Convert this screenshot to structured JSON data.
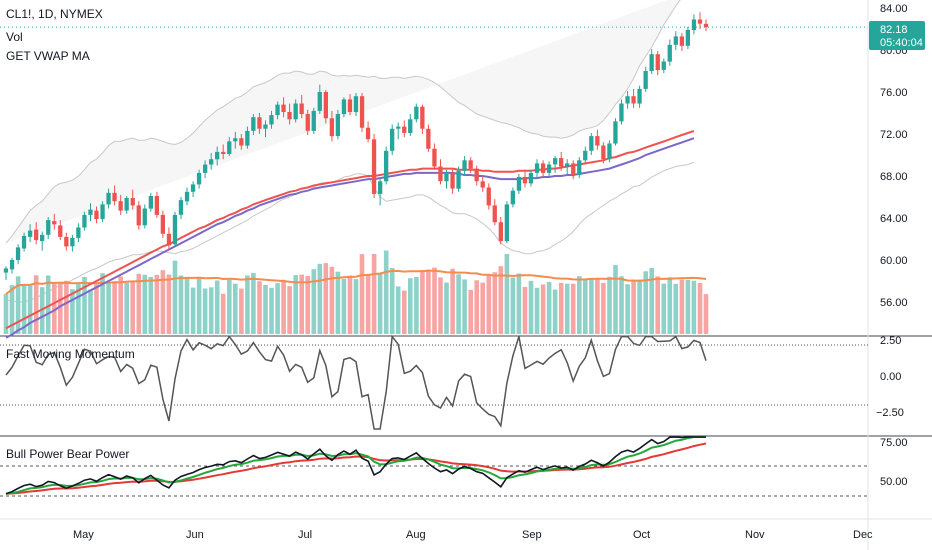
{
  "symbol_line": "CL1!, 1D, NYMEX",
  "vol_label": "Vol",
  "vwap_label": "GET VWAP MA",
  "price_axis": [
    "84.00",
    "80.00",
    "76.00",
    "72.00",
    "68.00",
    "64.00",
    "60.00",
    "56.00"
  ],
  "current_price": "82.18",
  "countdown": "05:40:04",
  "momentum": {
    "title": "Fast Moving Momentum",
    "axis": [
      "2.50",
      "0.00",
      "−2.50"
    ]
  },
  "bullbear": {
    "title": "Bull Power Bear Power",
    "axis": [
      "75.00",
      "50.00"
    ]
  },
  "time_axis": [
    "May",
    "Jun",
    "Jul",
    "Aug",
    "Sep",
    "Oct",
    "Nov",
    "Dec"
  ],
  "colors": {
    "up": "#26a69a",
    "down": "#ef5350",
    "vol_up": "#8ed1c8",
    "vol_down": "#f6a5a3",
    "ma_red": "#ef5350",
    "ma_blue": "#7b68c8",
    "vol_ma": "#f58c4d",
    "band": "#c8c8c8",
    "price_badge": "#26a69a",
    "line_black": "#131722",
    "green": "#22a83b",
    "red": "#e53935"
  },
  "chart_data": {
    "type": "candlestick",
    "x_range": [
      "2022-04-15",
      "2022-10-20"
    ],
    "ylim": [
      52.5,
      85
    ],
    "ohlc": [
      [
        58.8,
        59.4,
        58.1,
        59.2
      ],
      [
        59.1,
        60.2,
        58.7,
        60.0
      ],
      [
        60.0,
        61.5,
        59.6,
        61.2
      ],
      [
        61.1,
        62.6,
        60.8,
        62.3
      ],
      [
        62.2,
        63.4,
        61.7,
        62.8
      ],
      [
        62.9,
        63.6,
        61.5,
        61.9
      ],
      [
        61.8,
        62.7,
        60.9,
        62.4
      ],
      [
        62.4,
        64.1,
        62.0,
        63.8
      ],
      [
        63.7,
        64.4,
        62.9,
        63.4
      ],
      [
        63.3,
        63.8,
        61.9,
        62.2
      ],
      [
        62.2,
        62.6,
        60.9,
        61.3
      ],
      [
        61.3,
        62.4,
        60.8,
        62.1
      ],
      [
        62.1,
        63.5,
        61.7,
        63.1
      ],
      [
        63.1,
        64.6,
        62.8,
        64.3
      ],
      [
        64.3,
        65.4,
        63.7,
        64.8
      ],
      [
        64.7,
        65.1,
        63.5,
        63.9
      ],
      [
        63.9,
        65.6,
        63.6,
        65.3
      ],
      [
        65.3,
        66.8,
        64.9,
        66.4
      ],
      [
        66.4,
        67.1,
        65.2,
        65.6
      ],
      [
        65.6,
        66.2,
        64.3,
        64.7
      ],
      [
        64.7,
        66.1,
        64.4,
        65.9
      ],
      [
        65.9,
        66.7,
        64.8,
        65.2
      ],
      [
        65.2,
        65.6,
        62.9,
        63.3
      ],
      [
        63.3,
        65.3,
        63.0,
        64.9
      ],
      [
        64.9,
        66.4,
        64.6,
        66.1
      ],
      [
        66.1,
        66.5,
        64.0,
        64.3
      ],
      [
        64.3,
        64.7,
        62.1,
        62.5
      ],
      [
        62.5,
        63.1,
        61.0,
        61.4
      ],
      [
        61.5,
        64.6,
        61.2,
        64.3
      ],
      [
        64.3,
        66.0,
        63.9,
        65.7
      ],
      [
        65.6,
        66.9,
        65.2,
        66.5
      ],
      [
        66.5,
        67.5,
        66.0,
        67.2
      ],
      [
        67.2,
        68.6,
        66.8,
        68.3
      ],
      [
        68.3,
        69.5,
        67.8,
        69.1
      ],
      [
        69.1,
        70.2,
        68.6,
        69.6
      ],
      [
        69.6,
        70.8,
        69.0,
        70.3
      ],
      [
        70.3,
        71.0,
        69.6,
        70.1
      ],
      [
        70.1,
        71.7,
        69.9,
        71.3
      ],
      [
        71.3,
        72.2,
        70.6,
        71.6
      ],
      [
        71.6,
        72.0,
        70.5,
        70.9
      ],
      [
        70.9,
        72.7,
        70.6,
        72.3
      ],
      [
        72.3,
        73.9,
        71.9,
        73.6
      ],
      [
        73.6,
        74.0,
        72.0,
        72.5
      ],
      [
        72.5,
        73.3,
        71.7,
        72.9
      ],
      [
        72.9,
        74.2,
        72.5,
        73.8
      ],
      [
        73.8,
        75.1,
        73.4,
        74.8
      ],
      [
        74.8,
        75.5,
        73.6,
        74.1
      ],
      [
        74.1,
        74.9,
        72.9,
        73.4
      ],
      [
        73.4,
        75.3,
        73.1,
        74.9
      ],
      [
        74.9,
        75.7,
        73.5,
        73.9
      ],
      [
        73.9,
        74.3,
        71.9,
        72.3
      ],
      [
        72.3,
        74.5,
        72.0,
        74.2
      ],
      [
        74.2,
        76.7,
        73.9,
        76.0
      ],
      [
        76.0,
        76.2,
        73.0,
        73.5
      ],
      [
        73.5,
        74.2,
        71.3,
        71.8
      ],
      [
        71.8,
        74.3,
        71.5,
        73.9
      ],
      [
        73.9,
        75.5,
        73.6,
        75.3
      ],
      [
        75.3,
        75.8,
        73.8,
        74.1
      ],
      [
        74.1,
        75.9,
        73.7,
        75.6
      ],
      [
        75.6,
        75.9,
        72.2,
        72.6
      ],
      [
        72.6,
        73.2,
        71.2,
        71.5
      ],
      [
        71.5,
        72.0,
        65.9,
        66.3
      ],
      [
        66.3,
        67.9,
        65.2,
        67.5
      ],
      [
        67.5,
        70.8,
        67.2,
        70.4
      ],
      [
        70.4,
        72.9,
        70.0,
        72.5
      ],
      [
        72.5,
        73.1,
        71.5,
        72.7
      ],
      [
        72.7,
        73.3,
        71.7,
        72.1
      ],
      [
        72.1,
        73.9,
        71.8,
        73.4
      ],
      [
        73.4,
        74.9,
        73.1,
        74.6
      ],
      [
        74.6,
        74.8,
        72.0,
        72.5
      ],
      [
        72.5,
        72.9,
        70.3,
        70.6
      ],
      [
        70.6,
        71.1,
        68.6,
        68.9
      ],
      [
        68.9,
        69.6,
        67.2,
        67.5
      ],
      [
        67.5,
        68.6,
        66.8,
        68.2
      ],
      [
        68.2,
        68.8,
        66.3,
        66.8
      ],
      [
        66.8,
        68.9,
        66.5,
        68.5
      ],
      [
        68.5,
        69.9,
        68.1,
        69.5
      ],
      [
        69.5,
        69.8,
        68.3,
        68.7
      ],
      [
        68.7,
        69.0,
        67.1,
        67.5
      ],
      [
        67.5,
        68.1,
        66.5,
        66.9
      ],
      [
        66.9,
        67.3,
        64.8,
        65.2
      ],
      [
        65.2,
        65.8,
        63.3,
        63.6
      ],
      [
        63.6,
        64.1,
        61.5,
        61.8
      ],
      [
        61.8,
        65.6,
        61.6,
        65.3
      ],
      [
        65.3,
        66.9,
        65.0,
        66.6
      ],
      [
        66.6,
        68.2,
        66.3,
        67.9
      ],
      [
        67.9,
        68.6,
        66.9,
        67.3
      ],
      [
        67.3,
        68.6,
        67.0,
        68.3
      ],
      [
        68.3,
        69.6,
        67.9,
        69.2
      ],
      [
        69.2,
        69.5,
        67.9,
        68.3
      ],
      [
        68.3,
        69.4,
        67.9,
        69.1
      ],
      [
        69.1,
        69.9,
        68.3,
        69.7
      ],
      [
        69.7,
        70.3,
        68.5,
        68.9
      ],
      [
        68.9,
        69.6,
        68.0,
        69.2
      ],
      [
        69.2,
        69.5,
        67.7,
        68.1
      ],
      [
        68.1,
        69.8,
        67.8,
        69.5
      ],
      [
        69.5,
        70.8,
        69.2,
        70.4
      ],
      [
        70.4,
        72.1,
        70.0,
        71.8
      ],
      [
        71.8,
        72.4,
        70.5,
        70.9
      ],
      [
        70.9,
        71.2,
        69.2,
        69.6
      ],
      [
        69.6,
        71.4,
        69.3,
        71.1
      ],
      [
        71.1,
        73.5,
        70.9,
        73.2
      ],
      [
        73.2,
        75.3,
        72.9,
        74.9
      ],
      [
        74.9,
        76.1,
        74.4,
        75.6
      ],
      [
        75.6,
        76.3,
        74.5,
        74.9
      ],
      [
        74.9,
        76.6,
        74.5,
        76.3
      ],
      [
        76.3,
        78.4,
        76.0,
        78.0
      ],
      [
        78.0,
        80.1,
        77.7,
        79.6
      ],
      [
        79.6,
        79.9,
        77.6,
        78.1
      ],
      [
        78.1,
        79.2,
        77.8,
        78.9
      ],
      [
        78.9,
        81.0,
        78.5,
        80.5
      ],
      [
        80.5,
        81.8,
        80.0,
        81.3
      ],
      [
        81.3,
        81.6,
        79.9,
        80.4
      ],
      [
        80.4,
        82.2,
        80.1,
        81.9
      ],
      [
        81.9,
        83.4,
        81.5,
        82.9
      ],
      [
        82.9,
        83.6,
        82.0,
        82.5
      ],
      [
        82.5,
        82.9,
        81.8,
        82.18
      ]
    ],
    "bb_upper": [
      61.6,
      62.3,
      63.1,
      63.9,
      64.7,
      65.2,
      65.6,
      66.3,
      67.0,
      67.3,
      67.4,
      67.6,
      68.0,
      68.6,
      69.3,
      69.6,
      70.2,
      70.9,
      71.3,
      71.3,
      71.5,
      71.6,
      71.4,
      71.4,
      71.6,
      71.5,
      71.3,
      71.1,
      71.0,
      71.2,
      71.6,
      72.1,
      72.7,
      73.3,
      73.8,
      74.3,
      74.6,
      75.0,
      75.4,
      75.6,
      76.0,
      76.5,
      76.7,
      76.9,
      77.2,
      77.6,
      77.8,
      77.8,
      78.0,
      77.9,
      77.7,
      77.7,
      78.0,
      77.9,
      77.6,
      77.5,
      77.6,
      77.5,
      77.6,
      77.5,
      77.4,
      77.5,
      77.3,
      77.3,
      77.4,
      77.4,
      77.3,
      77.4,
      77.5,
      77.4,
      77.2,
      76.9,
      76.5,
      76.0,
      75.5,
      75.0,
      74.7,
      74.3,
      73.9,
      73.7,
      73.5,
      73.3,
      73.1,
      73.0,
      72.8,
      72.6,
      72.3,
      72.1,
      72.0,
      71.8,
      71.7,
      71.7,
      71.6,
      71.7,
      71.9,
      72.3,
      72.5,
      72.6,
      72.8,
      73.3,
      74.0,
      74.8,
      75.5,
      76.3,
      77.3,
      78.5,
      79.4,
      80.3,
      81.3,
      82.4,
      83.3,
      84.2,
      85.0,
      85.6,
      85.7
    ],
    "bb_lower": [
      56.2,
      56.1,
      56.0,
      56.0,
      56.2,
      56.4,
      56.7,
      57.0,
      57.3,
      57.6,
      57.8,
      58.1,
      58.4,
      58.7,
      59.0,
      59.2,
      59.5,
      59.8,
      60.0,
      60.1,
      60.3,
      60.5,
      60.5,
      60.6,
      60.8,
      60.9,
      60.8,
      60.7,
      60.6,
      60.8,
      60.9,
      61.1,
      61.4,
      61.7,
      62.0,
      62.3,
      62.6,
      62.9,
      63.2,
      63.5,
      63.8,
      64.2,
      64.5,
      64.8,
      65.1,
      65.5,
      65.8,
      66.0,
      66.3,
      66.5,
      66.6,
      66.9,
      67.3,
      67.4,
      67.4,
      67.6,
      67.9,
      68.0,
      68.2,
      68.2,
      68.0,
      66.9,
      66.0,
      65.6,
      65.7,
      65.8,
      65.9,
      66.0,
      66.2,
      66.2,
      66.0,
      65.6,
      65.2,
      64.9,
      64.5,
      64.4,
      64.4,
      64.2,
      63.9,
      63.5,
      63.0,
      62.4,
      61.6,
      61.2,
      60.9,
      60.8,
      60.6,
      60.6,
      60.8,
      60.9,
      61.1,
      61.5,
      61.8,
      62.2,
      62.7,
      63.4,
      64.0,
      64.4,
      64.8,
      65.2,
      65.6,
      65.9,
      66.3,
      66.6,
      67.0,
      67.1,
      67.5,
      67.9,
      68.2,
      68.5,
      68.7,
      68.9,
      69.0,
      69.1,
      69.3
    ],
    "vwap_ma_red": [
      53.5,
      53.8,
      54.1,
      54.4,
      54.7,
      55.0,
      55.3,
      55.6,
      55.9,
      56.2,
      56.5,
      56.8,
      57.1,
      57.4,
      57.7,
      58.0,
      58.3,
      58.6,
      58.9,
      59.2,
      59.5,
      59.8,
      60.1,
      60.4,
      60.7,
      61.0,
      61.3,
      61.5,
      61.8,
      62.1,
      62.4,
      62.7,
      63.0,
      63.2,
      63.5,
      63.8,
      64.0,
      64.3,
      64.5,
      64.8,
      65.0,
      65.3,
      65.5,
      65.7,
      65.9,
      66.1,
      66.3,
      66.5,
      66.6,
      66.8,
      66.9,
      67.1,
      67.2,
      67.3,
      67.4,
      67.5,
      67.6,
      67.7,
      67.8,
      67.9,
      68.0,
      68.0,
      68.1,
      68.2,
      68.3,
      68.4,
      68.5,
      68.6,
      68.6,
      68.7,
      68.7,
      68.7,
      68.7,
      68.7,
      68.7,
      68.6,
      68.6,
      68.6,
      68.6,
      68.5,
      68.5,
      68.4,
      68.4,
      68.4,
      68.4,
      68.5,
      68.5,
      68.5,
      68.6,
      68.6,
      68.7,
      68.7,
      68.8,
      68.9,
      69.0,
      69.1,
      69.2,
      69.3,
      69.4,
      69.5,
      69.7,
      69.8,
      70.0,
      70.2,
      70.3,
      70.5,
      70.7,
      70.9,
      71.1,
      71.3,
      71.5,
      71.7,
      71.9,
      72.1,
      72.3
    ],
    "vwap_ma_blue": [
      52.6,
      52.9,
      53.3,
      53.6,
      54.0,
      54.3,
      54.6,
      54.9,
      55.2,
      55.6,
      55.9,
      56.2,
      56.5,
      56.8,
      57.1,
      57.4,
      57.7,
      58.0,
      58.3,
      58.6,
      58.9,
      59.2,
      59.5,
      59.8,
      60.1,
      60.4,
      60.7,
      61.0,
      61.3,
      61.6,
      61.9,
      62.2,
      62.5,
      62.8,
      63.1,
      63.4,
      63.6,
      63.9,
      64.2,
      64.4,
      64.7,
      64.9,
      65.2,
      65.4,
      65.6,
      65.8,
      66.0,
      66.2,
      66.3,
      66.5,
      66.6,
      66.8,
      66.9,
      67.0,
      67.1,
      67.2,
      67.3,
      67.4,
      67.5,
      67.6,
      67.7,
      67.7,
      67.8,
      67.9,
      68.0,
      68.1,
      68.2,
      68.2,
      68.3,
      68.3,
      68.3,
      68.3,
      68.3,
      68.3,
      68.3,
      68.2,
      68.1,
      68.1,
      68.0,
      68.0,
      67.9,
      67.8,
      67.7,
      67.7,
      67.7,
      67.7,
      67.8,
      67.8,
      67.8,
      67.9,
      67.9,
      68.0,
      68.0,
      68.1,
      68.1,
      68.2,
      68.3,
      68.4,
      68.5,
      68.6,
      68.7,
      68.9,
      69.1,
      69.3,
      69.5,
      69.7,
      70.0,
      70.2,
      70.4,
      70.6,
      70.8,
      71.0,
      71.2,
      71.4,
      71.6
    ]
  }
}
